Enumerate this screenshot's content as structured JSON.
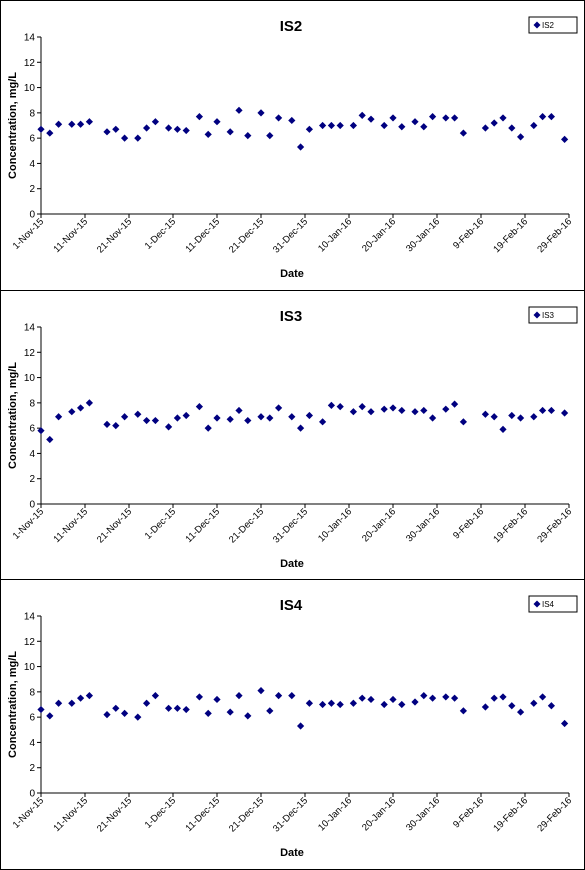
{
  "chart_data": [
    {
      "type": "scatter",
      "title": "IS2",
      "xlabel": "Date",
      "ylabel": "Concentration, mg/L",
      "ylim": [
        0,
        14
      ],
      "yticks": [
        0,
        2,
        4,
        6,
        8,
        10,
        12,
        14
      ],
      "xlim": [
        "2015-11-01",
        "2016-02-29"
      ],
      "xticks": [
        "1-Nov-15",
        "11-Nov-15",
        "21-Nov-15",
        "1-Dec-15",
        "11-Dec-15",
        "21-Dec-15",
        "31-Dec-15",
        "10-Jan-16",
        "20-Jan-16",
        "30-Jan-16",
        "9-Feb-16",
        "19-Feb-16",
        "29-Feb-16"
      ],
      "legend": "top-right",
      "grid": false,
      "color": "#000080",
      "series": [
        {
          "name": "IS2",
          "x": [
            "2015-11-01",
            "2015-11-03",
            "2015-11-05",
            "2015-11-08",
            "2015-11-10",
            "2015-11-12",
            "2015-11-16",
            "2015-11-18",
            "2015-11-20",
            "2015-11-23",
            "2015-11-25",
            "2015-11-27",
            "2015-11-30",
            "2015-12-02",
            "2015-12-04",
            "2015-12-07",
            "2015-12-09",
            "2015-12-11",
            "2015-12-14",
            "2015-12-16",
            "2015-12-18",
            "2015-12-21",
            "2015-12-23",
            "2015-12-25",
            "2015-12-28",
            "2015-12-30",
            "2016-01-01",
            "2016-01-04",
            "2016-01-06",
            "2016-01-08",
            "2016-01-11",
            "2016-01-13",
            "2016-01-15",
            "2016-01-18",
            "2016-01-20",
            "2016-01-22",
            "2016-01-25",
            "2016-01-27",
            "2016-01-29",
            "2016-02-01",
            "2016-02-03",
            "2016-02-05",
            "2016-02-10",
            "2016-02-12",
            "2016-02-14",
            "2016-02-16",
            "2016-02-18",
            "2016-02-21",
            "2016-02-23",
            "2016-02-25",
            "2016-02-28"
          ],
          "y": [
            6.7,
            6.4,
            7.1,
            7.1,
            7.1,
            7.3,
            6.5,
            6.7,
            6.0,
            6.0,
            6.8,
            7.3,
            6.8,
            6.7,
            6.6,
            7.7,
            6.3,
            7.3,
            6.5,
            8.2,
            6.2,
            8.0,
            6.2,
            7.6,
            7.4,
            5.3,
            6.7,
            7.0,
            7.0,
            7.0,
            7.0,
            7.8,
            7.5,
            7.0,
            7.6,
            6.9,
            7.3,
            6.9,
            7.7,
            7.6,
            7.6,
            6.4,
            6.8,
            7.2,
            7.6,
            6.8,
            6.1,
            7.0,
            7.7,
            7.7,
            5.9
          ]
        }
      ]
    },
    {
      "type": "scatter",
      "title": "IS3",
      "xlabel": "Date",
      "ylabel": "Concentration, mg/L",
      "ylim": [
        0,
        14
      ],
      "yticks": [
        0,
        2,
        4,
        6,
        8,
        10,
        12,
        14
      ],
      "xlim": [
        "2015-11-01",
        "2016-02-29"
      ],
      "xticks": [
        "1-Nov-15",
        "11-Nov-15",
        "21-Nov-15",
        "1-Dec-15",
        "11-Dec-15",
        "21-Dec-15",
        "31-Dec-15",
        "10-Jan-16",
        "20-Jan-16",
        "30-Jan-16",
        "9-Feb-16",
        "19-Feb-16",
        "29-Feb-16"
      ],
      "legend": "top-right",
      "grid": false,
      "color": "#000080",
      "series": [
        {
          "name": "IS3",
          "x": [
            "2015-11-01",
            "2015-11-03",
            "2015-11-05",
            "2015-11-08",
            "2015-11-10",
            "2015-11-12",
            "2015-11-16",
            "2015-11-18",
            "2015-11-20",
            "2015-11-23",
            "2015-11-25",
            "2015-11-27",
            "2015-11-30",
            "2015-12-02",
            "2015-12-04",
            "2015-12-07",
            "2015-12-09",
            "2015-12-11",
            "2015-12-14",
            "2015-12-16",
            "2015-12-18",
            "2015-12-21",
            "2015-12-23",
            "2015-12-25",
            "2015-12-28",
            "2015-12-30",
            "2016-01-01",
            "2016-01-04",
            "2016-01-06",
            "2016-01-08",
            "2016-01-11",
            "2016-01-13",
            "2016-01-15",
            "2016-01-18",
            "2016-01-20",
            "2016-01-22",
            "2016-01-25",
            "2016-01-27",
            "2016-01-29",
            "2016-02-01",
            "2016-02-03",
            "2016-02-05",
            "2016-02-10",
            "2016-02-12",
            "2016-02-14",
            "2016-02-16",
            "2016-02-18",
            "2016-02-21",
            "2016-02-23",
            "2016-02-25",
            "2016-02-28"
          ],
          "y": [
            5.8,
            5.1,
            6.9,
            7.3,
            7.6,
            8.0,
            6.3,
            6.2,
            6.9,
            7.1,
            6.6,
            6.6,
            6.1,
            6.8,
            7.0,
            7.7,
            6.0,
            6.8,
            6.7,
            7.4,
            6.6,
            6.9,
            6.8,
            7.6,
            6.9,
            6.0,
            7.0,
            6.5,
            7.8,
            7.7,
            7.3,
            7.7,
            7.3,
            7.5,
            7.6,
            7.4,
            7.3,
            7.4,
            6.8,
            7.5,
            7.9,
            6.5,
            7.1,
            6.9,
            5.9,
            7.0,
            6.8,
            6.9,
            7.4,
            7.4,
            7.2
          ]
        }
      ]
    },
    {
      "type": "scatter",
      "title": "IS4",
      "xlabel": "Date",
      "ylabel": "Concentration, mg/L",
      "ylim": [
        0,
        14
      ],
      "yticks": [
        0,
        2,
        4,
        6,
        8,
        10,
        12,
        14
      ],
      "xlim": [
        "2015-11-01",
        "2016-02-29"
      ],
      "xticks": [
        "1-Nov-15",
        "11-Nov-15",
        "21-Nov-15",
        "1-Dec-15",
        "11-Dec-15",
        "21-Dec-15",
        "31-Dec-15",
        "10-Jan-16",
        "20-Jan-16",
        "30-Jan-16",
        "9-Feb-16",
        "19-Feb-16",
        "29-Feb-16"
      ],
      "legend": "top-right",
      "grid": false,
      "color": "#000080",
      "series": [
        {
          "name": "IS4",
          "x": [
            "2015-11-01",
            "2015-11-03",
            "2015-11-05",
            "2015-11-08",
            "2015-11-10",
            "2015-11-12",
            "2015-11-16",
            "2015-11-18",
            "2015-11-20",
            "2015-11-23",
            "2015-11-25",
            "2015-11-27",
            "2015-11-30",
            "2015-12-02",
            "2015-12-04",
            "2015-12-07",
            "2015-12-09",
            "2015-12-11",
            "2015-12-14",
            "2015-12-16",
            "2015-12-18",
            "2015-12-21",
            "2015-12-23",
            "2015-12-25",
            "2015-12-28",
            "2015-12-30",
            "2016-01-01",
            "2016-01-04",
            "2016-01-06",
            "2016-01-08",
            "2016-01-11",
            "2016-01-13",
            "2016-01-15",
            "2016-01-18",
            "2016-01-20",
            "2016-01-22",
            "2016-01-25",
            "2016-01-27",
            "2016-01-29",
            "2016-02-01",
            "2016-02-03",
            "2016-02-05",
            "2016-02-10",
            "2016-02-12",
            "2016-02-14",
            "2016-02-16",
            "2016-02-18",
            "2016-02-21",
            "2016-02-23",
            "2016-02-25",
            "2016-02-28"
          ],
          "y": [
            6.6,
            6.1,
            7.1,
            7.1,
            7.5,
            7.7,
            6.2,
            6.7,
            6.3,
            6.0,
            7.1,
            7.7,
            6.7,
            6.7,
            6.6,
            7.6,
            6.3,
            7.4,
            6.4,
            7.7,
            6.1,
            8.1,
            6.5,
            7.7,
            7.7,
            5.3,
            7.1,
            7.0,
            7.1,
            7.0,
            7.1,
            7.5,
            7.4,
            7.0,
            7.4,
            7.0,
            7.2,
            7.7,
            7.5,
            7.6,
            7.5,
            6.5,
            6.8,
            7.5,
            7.6,
            6.9,
            6.4,
            7.1,
            7.6,
            6.9,
            5.5
          ]
        }
      ]
    }
  ]
}
